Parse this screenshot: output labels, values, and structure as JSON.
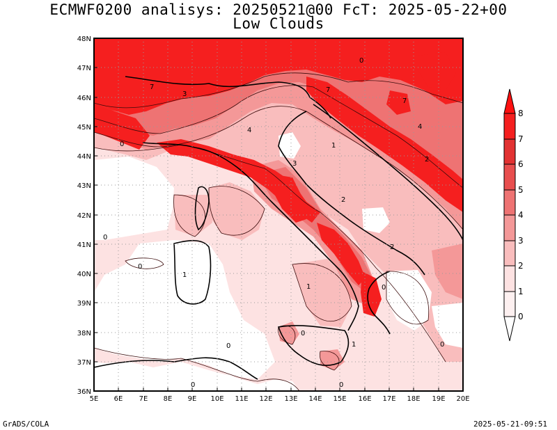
{
  "title": {
    "line1": "ECMWF0200 analisys: 20250521@00 FcT: 2025-05-22+00",
    "line2": "Low Clouds"
  },
  "footer": {
    "credit": "GrADS/COLA",
    "timestamp": "2025-05-21-09:51"
  },
  "map": {
    "lat_ticks": [
      "48N",
      "47N",
      "46N",
      "45N",
      "44N",
      "43N",
      "42N",
      "41N",
      "40N",
      "39N",
      "38N",
      "37N",
      "36N"
    ],
    "lon_ticks": [
      "5E",
      "6E",
      "7E",
      "8E",
      "9E",
      "10E",
      "11E",
      "12E",
      "13E",
      "14E",
      "15E",
      "16E",
      "17E",
      "18E",
      "19E",
      "20E"
    ],
    "lat_range": [
      36,
      48
    ],
    "lon_range": [
      5,
      20
    ],
    "grid": "dotted",
    "contour_labels": [
      "0",
      "0",
      "0",
      "0",
      "0",
      "0",
      "0",
      "0",
      "0",
      "0",
      "1",
      "1",
      "1",
      "1",
      "2",
      "2",
      "2",
      "3",
      "3",
      "4",
      "4",
      "7",
      "7",
      "7"
    ]
  },
  "colorbar": {
    "labels": [
      "0",
      "1",
      "2",
      "3",
      "4",
      "5",
      "6",
      "7",
      "8"
    ],
    "colors": [
      "#ffffff",
      "#fde2e2",
      "#f9bdbd",
      "#f49898",
      "#ee7373",
      "#e84e4e",
      "#e23232",
      "#f51f1f",
      "#ff1010"
    ],
    "extends": "both"
  }
}
